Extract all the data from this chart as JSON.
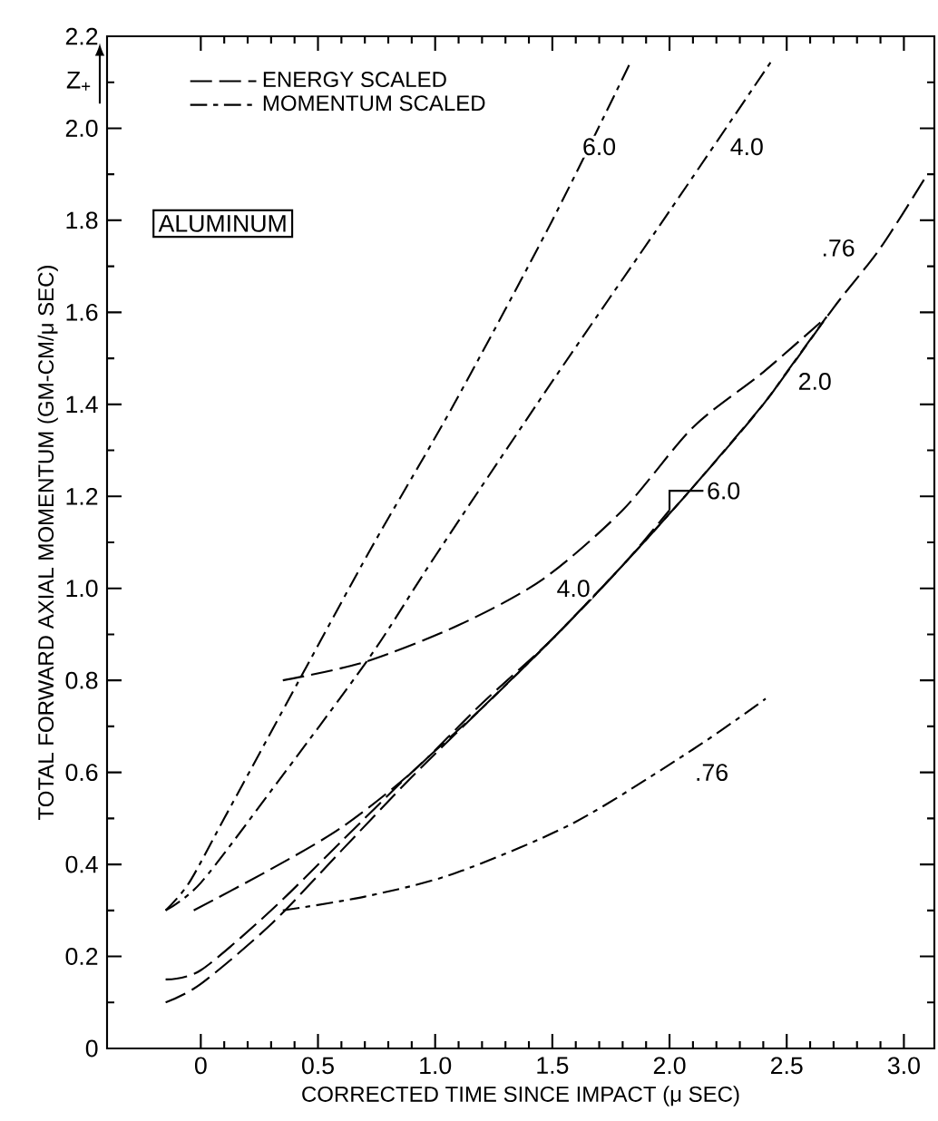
{
  "chart_data": {
    "type": "line",
    "xlabel": "CORRECTED TIME SINCE IMPACT (μ SEC)",
    "ylabel": "TOTAL FORWARD AXIAL MOMENTUM (GM-CM/μ SEC)",
    "xlim": [
      -0.4,
      3.13
    ],
    "ylim": [
      0,
      2.2
    ],
    "xticks": [
      0,
      0.5,
      {
        "value": 1,
        "label": "1.0"
      },
      1.5,
      {
        "value": 2,
        "label": "2.0"
      },
      2.5,
      {
        "value": 3,
        "label": "3.0"
      }
    ],
    "yticks": [
      0,
      0.2,
      0.4,
      0.6,
      0.8,
      {
        "value": 1,
        "label": "1.0"
      },
      1.2,
      1.4,
      1.6,
      1.8,
      {
        "value": 2,
        "label": "2.0"
      },
      2.2
    ],
    "grid": false,
    "legend": "top left",
    "marker": "none",
    "line_style": "dashed",
    "series": [
      {
        "name": "ENERGY SCALED",
        "color": "#000000",
        "x": [
          -0.15,
          0,
          0.3,
          0.6,
          0.9,
          1.2,
          1.5,
          1.8,
          2.1,
          2.4,
          2.7,
          2.9,
          3.1
        ],
        "values": [
          0.1,
          0.14,
          0.27,
          0.43,
          0.59,
          0.74,
          0.89,
          1.05,
          1.22,
          1.4,
          1.61,
          1.74,
          1.9
        ]
      },
      {
        "color": "#000000",
        "x": [
          -0.15,
          0,
          0.3,
          0.6,
          0.9,
          1.2,
          1.5,
          1.8,
          2.1,
          2.4,
          2.5,
          2.67
        ],
        "values": [
          0.15,
          0.17,
          0.3,
          0.45,
          0.6,
          0.74,
          0.89,
          1.05,
          1.22,
          1.4,
          1.47,
          1.59
        ]
      },
      {
        "color": "#000000",
        "x": [
          -0.03,
          0.3,
          0.6,
          0.9,
          1.2,
          1.5,
          1.8,
          2.0
        ],
        "values": [
          0.3,
          0.39,
          0.48,
          0.6,
          0.75,
          0.89,
          1.05,
          1.17
        ]
      },
      {
        "color": "#000000",
        "x": [
          0.35,
          0.7,
          1.1,
          1.46,
          1.8,
          2.1,
          2.4,
          2.67
        ],
        "values": [
          0.8,
          0.84,
          0.92,
          1.02,
          1.17,
          1.35,
          1.47,
          1.59
        ]
      },
      {
        "name": "MOMENTUM SCALED",
        "color": "#000000",
        "x": [
          -0.15,
          -0.05,
          0.1,
          0.43,
          0.73,
          1.08,
          1.5,
          1.83
        ],
        "values": [
          0.3,
          0.36,
          0.5,
          0.81,
          1.09,
          1.4,
          1.8,
          2.14
        ]
      },
      {
        "color": "#000000",
        "x": [
          -0.15,
          0,
          0.3,
          0.72,
          1.0,
          1.5,
          2.0,
          2.44
        ],
        "values": [
          0.3,
          0.36,
          0.56,
          0.85,
          1.07,
          1.45,
          1.82,
          2.15
        ]
      },
      {
        "color": "#000000",
        "x": [
          0.35,
          0.7,
          1.08,
          1.59,
          2.1,
          2.41
        ],
        "values": [
          0.3,
          0.33,
          0.38,
          0.49,
          0.65,
          0.76
        ]
      }
    ],
    "annotations": [
      "ALUMINUM",
      "Z$_{+}$",
      {
        "text": "6.0",
        "x": 1.7,
        "y": 1.96
      },
      {
        "text": "4.0",
        "x": 2.33,
        "y": 1.96
      },
      {
        "text": ".76",
        "x": 2.72,
        "y": 1.74
      },
      {
        "text": "2.0",
        "x": 2.62,
        "y": 1.45
      },
      {
        "text": "6.0",
        "x": 2.0,
        "y": 1.17
      },
      {
        "text": "4.0",
        "x": 1.59,
        "y": 1.0
      },
      {
        "text": ".76",
        "x": 2.18,
        "y": 0.6
      }
    ]
  }
}
